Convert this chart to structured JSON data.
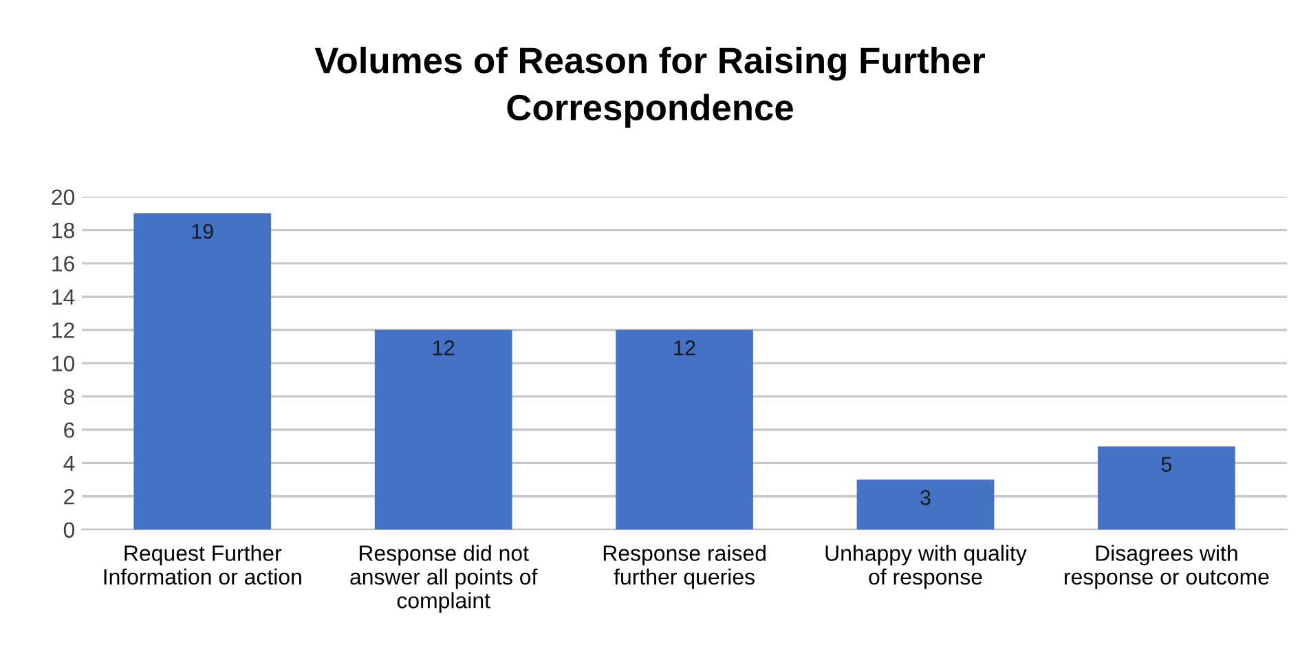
{
  "chart_data": {
    "type": "bar",
    "title": "Volumes of Reason for Raising Further\nCorrespondence",
    "categories": [
      "Request Further\nInformation or action",
      "Response did not\nanswer all points of\ncomplaint",
      "Response raised\nfurther queries",
      "Unhappy with quality\nof response",
      "Disagrees with\nresponse or outcome"
    ],
    "values": [
      19,
      12,
      12,
      3,
      5
    ],
    "color": "#4472c4",
    "ylim": [
      0,
      20
    ],
    "yticks": [
      0,
      2,
      4,
      6,
      8,
      10,
      12,
      14,
      16,
      18,
      20
    ],
    "grid": "y",
    "data_labels": true,
    "legend": false
  }
}
